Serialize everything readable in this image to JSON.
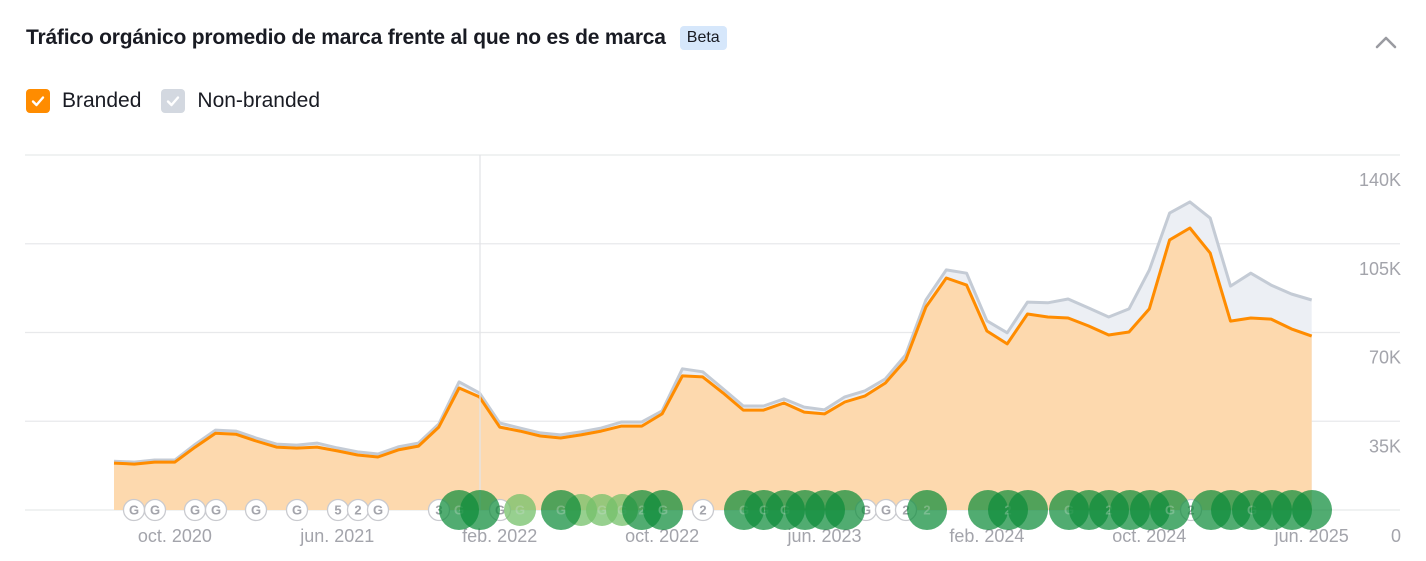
{
  "header": {
    "title": "Tráfico orgánico promedio de marca frente al que no es de marca",
    "badge": "Beta",
    "collapse_icon": "chevron-up-icon"
  },
  "legend": [
    {
      "label": "Branded",
      "checked": true,
      "color": "#ff8c00"
    },
    {
      "label": "Non-branded",
      "checked": true,
      "color": "#cfd4dc"
    }
  ],
  "colors": {
    "branded_line": "#ff8c00",
    "branded_fill": "#fdd9ae",
    "nonbranded_line": "#c4cbd5",
    "nonbranded_fill": "#eceff4",
    "grid": "#e8e9eb",
    "axis_text": "#a3a4ab",
    "marker_dark": "#0e8c3a",
    "marker_light": "#74c069"
  },
  "chart_data": {
    "type": "area",
    "title": "Tráfico orgánico promedio de marca frente al que no es de marca",
    "xlabel": "",
    "ylabel": "",
    "ylim": [
      0,
      140000
    ],
    "y_ticks": [
      "0",
      "35K",
      "70K",
      "105K",
      "140K"
    ],
    "x_tick_labels": [
      "oct. 2020",
      "jun. 2021",
      "feb. 2022",
      "oct. 2022",
      "jun. 2023",
      "feb. 2024",
      "oct. 2024",
      "jun. 2025"
    ],
    "y_axis_position": "right",
    "grid": true,
    "legend_position": "top-left",
    "x": [
      "jul. 2020",
      "ago. 2020",
      "sep. 2020",
      "oct. 2020",
      "nov. 2020",
      "dic. 2020",
      "ene. 2021",
      "feb. 2021",
      "mar. 2021",
      "abr. 2021",
      "may. 2021",
      "jun. 2021",
      "jul. 2021",
      "ago. 2021",
      "sep. 2021",
      "oct. 2021",
      "nov. 2021",
      "dic. 2021",
      "ene. 2022",
      "feb. 2022",
      "mar. 2022",
      "abr. 2022",
      "may. 2022",
      "jun. 2022",
      "jul. 2022",
      "ago. 2022",
      "sep. 2022",
      "oct. 2022",
      "nov. 2022",
      "dic. 2022",
      "ene. 2023",
      "feb. 2023",
      "mar. 2023",
      "abr. 2023",
      "may. 2023",
      "jun. 2023",
      "jul. 2023",
      "ago. 2023",
      "sep. 2023",
      "oct. 2023",
      "nov. 2023",
      "dic. 2023",
      "ene. 2024",
      "feb. 2024",
      "mar. 2024",
      "abr. 2024",
      "may. 2024",
      "jun. 2024",
      "jul. 2024",
      "ago. 2024",
      "sep. 2024",
      "oct. 2024",
      "nov. 2024",
      "dic. 2024",
      "ene. 2025",
      "feb. 2025",
      "mar. 2025",
      "abr. 2025",
      "may. 2025",
      "jun. 2025"
    ],
    "series": [
      {
        "name": "Branded",
        "values": [
          18500,
          18100,
          18900,
          18900,
          24800,
          30300,
          29900,
          27200,
          24800,
          24400,
          24800,
          23300,
          21700,
          20900,
          23700,
          25200,
          32700,
          48100,
          44600,
          32700,
          31100,
          29200,
          28400,
          29600,
          31100,
          33100,
          33100,
          37900,
          52900,
          52500,
          46200,
          39400,
          39400,
          42200,
          38600,
          37900,
          42600,
          45000,
          50100,
          59200,
          80100,
          91500,
          88700,
          70600,
          65500,
          77300,
          76100,
          75700,
          72600,
          69000,
          70200,
          79300,
          106500,
          111200,
          101300,
          74500,
          75700,
          75300,
          71400,
          68600
        ]
      },
      {
        "name": "Non-branded",
        "values": [
          700,
          800,
          800,
          800,
          1100,
          1200,
          1200,
          1200,
          1200,
          1200,
          1600,
          1200,
          1200,
          1200,
          1200,
          1200,
          1200,
          2400,
          1600,
          1600,
          1200,
          1200,
          1200,
          1200,
          1200,
          1600,
          1600,
          1200,
          2800,
          2000,
          1600,
          1600,
          1600,
          1600,
          2000,
          1600,
          2000,
          2000,
          1600,
          2000,
          2800,
          3200,
          4700,
          4000,
          4400,
          4700,
          5600,
          7500,
          7100,
          7100,
          9100,
          15300,
          10600,
          10300,
          13800,
          13800,
          17700,
          13400,
          13800,
          14200
        ]
      }
    ]
  },
  "markers": [
    {
      "x": 134,
      "kind": "small",
      "label": "G"
    },
    {
      "x": 155,
      "kind": "small",
      "label": "G"
    },
    {
      "x": 195,
      "kind": "small",
      "label": "G"
    },
    {
      "x": 216,
      "kind": "small",
      "label": "G"
    },
    {
      "x": 256,
      "kind": "small",
      "label": "G"
    },
    {
      "x": 297,
      "kind": "small",
      "label": "G"
    },
    {
      "x": 338,
      "kind": "small",
      "label": "5"
    },
    {
      "x": 358,
      "kind": "small",
      "label": "2"
    },
    {
      "x": 378,
      "kind": "small",
      "label": "G"
    },
    {
      "x": 439,
      "kind": "small",
      "label": "3"
    },
    {
      "x": 459,
      "kind": "big",
      "label": "G"
    },
    {
      "x": 480,
      "kind": "big",
      "label": ""
    },
    {
      "x": 500,
      "kind": "small",
      "label": "G"
    },
    {
      "x": 520,
      "kind": "light",
      "label": "G"
    },
    {
      "x": 561,
      "kind": "big",
      "label": "G"
    },
    {
      "x": 581,
      "kind": "light",
      "label": ""
    },
    {
      "x": 602,
      "kind": "light",
      "label": "G"
    },
    {
      "x": 622,
      "kind": "light",
      "label": "G"
    },
    {
      "x": 642,
      "kind": "big",
      "label": "2"
    },
    {
      "x": 663,
      "kind": "big",
      "label": "G"
    },
    {
      "x": 703,
      "kind": "small",
      "label": "2"
    },
    {
      "x": 744,
      "kind": "big",
      "label": "G"
    },
    {
      "x": 764,
      "kind": "big",
      "label": "G"
    },
    {
      "x": 785,
      "kind": "big",
      "label": "G"
    },
    {
      "x": 805,
      "kind": "big",
      "label": ""
    },
    {
      "x": 825,
      "kind": "big",
      "label": ""
    },
    {
      "x": 845,
      "kind": "big",
      "label": ""
    },
    {
      "x": 866,
      "kind": "small",
      "label": "G"
    },
    {
      "x": 886,
      "kind": "small",
      "label": "G"
    },
    {
      "x": 906,
      "kind": "small",
      "label": "2"
    },
    {
      "x": 927,
      "kind": "big",
      "label": "2"
    },
    {
      "x": 988,
      "kind": "big",
      "label": ""
    },
    {
      "x": 1008,
      "kind": "big",
      "label": "2"
    },
    {
      "x": 1028,
      "kind": "big",
      "label": ""
    },
    {
      "x": 1069,
      "kind": "big",
      "label": "G"
    },
    {
      "x": 1089,
      "kind": "big",
      "label": ""
    },
    {
      "x": 1109,
      "kind": "big",
      "label": "2"
    },
    {
      "x": 1130,
      "kind": "big",
      "label": ""
    },
    {
      "x": 1150,
      "kind": "big",
      "label": ""
    },
    {
      "x": 1170,
      "kind": "big",
      "label": "G"
    },
    {
      "x": 1191,
      "kind": "small",
      "label": "2"
    },
    {
      "x": 1211,
      "kind": "big",
      "label": ""
    },
    {
      "x": 1231,
      "kind": "big",
      "label": ""
    },
    {
      "x": 1252,
      "kind": "big",
      "label": "G"
    },
    {
      "x": 1272,
      "kind": "big",
      "label": ""
    },
    {
      "x": 1292,
      "kind": "big",
      "label": ""
    },
    {
      "x": 1312,
      "kind": "big",
      "label": ""
    }
  ]
}
